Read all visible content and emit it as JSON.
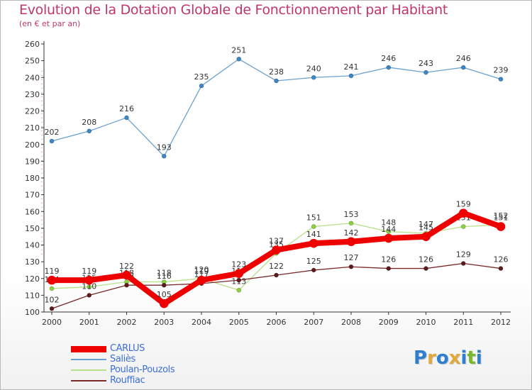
{
  "chart_data": {
    "type": "line",
    "title": "Evolution de la Dotation Globale de Fonctionnement par Habitant",
    "subtitle": "(en € et par an)",
    "xlabel": "",
    "ylabel": "",
    "ylim": [
      100,
      260
    ],
    "y_ticks": [
      100,
      110,
      120,
      130,
      140,
      150,
      160,
      170,
      180,
      190,
      200,
      210,
      220,
      230,
      240,
      250,
      260
    ],
    "categories": [
      "2000",
      "2001",
      "2002",
      "2003",
      "2004",
      "2005",
      "2006",
      "2007",
      "2008",
      "2009",
      "2010",
      "2011",
      "2012"
    ],
    "grid": false,
    "legend_position": "bottom-left",
    "series": [
      {
        "name": "Saliès",
        "color": "#6aa1cf",
        "marker": "#3a86c8",
        "values": [
          202,
          208,
          216,
          193,
          235,
          251,
          238,
          240,
          241,
          246,
          243,
          246,
          239
        ]
      },
      {
        "name": "Poulan-Pouzols",
        "color": "#b6e08a",
        "marker": "#8bd33a",
        "values": [
          114,
          115,
          118,
          118,
          120,
          113,
          135,
          151,
          153,
          148,
          147,
          151,
          152
        ]
      },
      {
        "name": "Rouffiac",
        "color": "#7a2a2a",
        "marker": "#5e1a1a",
        "values": [
          102,
          110,
          116,
          116,
          117,
          119,
          122,
          125,
          127,
          126,
          126,
          129,
          126
        ]
      },
      {
        "name": "CARLUS",
        "color": "#ee0000",
        "marker": "#ee0000",
        "values": [
          119,
          119,
          122,
          105,
          119,
          123,
          137,
          141,
          142,
          144,
          145,
          159,
          151
        ]
      }
    ]
  },
  "legend": {
    "items": [
      {
        "label": "CARLUS",
        "color": "#ee0000"
      },
      {
        "label": "Saliès",
        "color": "#6aa1cf"
      },
      {
        "label": "Poulan-Pouzols",
        "color": "#b6e08a"
      },
      {
        "label": "Rouffiac",
        "color": "#7a2a2a"
      }
    ]
  },
  "brand": {
    "letters": [
      "P",
      "r",
      "o",
      "x",
      "i",
      "t",
      "i"
    ],
    "colors": [
      "#2f7fcf",
      "#e3a83a",
      "#2f7fcf",
      "#e3a83a",
      "#2f7fcf",
      "#79b829",
      "#2f7fcf"
    ]
  }
}
